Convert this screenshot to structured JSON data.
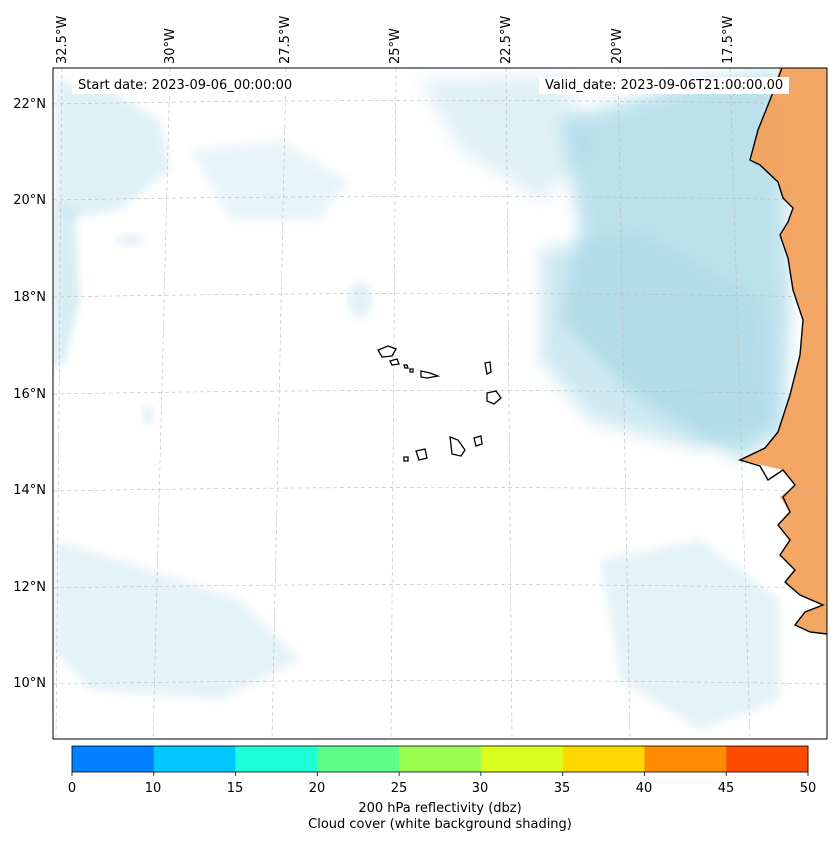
{
  "map": {
    "start_date": "Start date: 2023-09-06_00:00:00",
    "valid_date": "Valid_date: 2023-09-06T21:00:00.00",
    "lon_labels": [
      "32.5°W",
      "30°W",
      "27.5°W",
      "25°W",
      "22.5°W",
      "20°W",
      "17.5°W"
    ],
    "lat_labels": [
      "22°N",
      "20°N",
      "18°N",
      "16°N",
      "14°N",
      "12°N",
      "10°N"
    ],
    "colors": {
      "cloud": "#a8d8e6",
      "land_shading": "#f3a15c",
      "coastline": "#000000",
      "gridline": "#bbbbbb"
    }
  },
  "colorbar": {
    "ticks": [
      "0",
      "10",
      "15",
      "20",
      "25",
      "30",
      "35",
      "40",
      "45",
      "50"
    ],
    "colors": [
      "#0080ff",
      "#00c8ff",
      "#1effd8",
      "#5cff8a",
      "#9bff50",
      "#d8ff1e",
      "#ffd800",
      "#ff8c00",
      "#ff4b00"
    ],
    "label_line1": "200 hPa reflectivity (dbz)",
    "label_line2": "Cloud cover (white background shading)"
  }
}
